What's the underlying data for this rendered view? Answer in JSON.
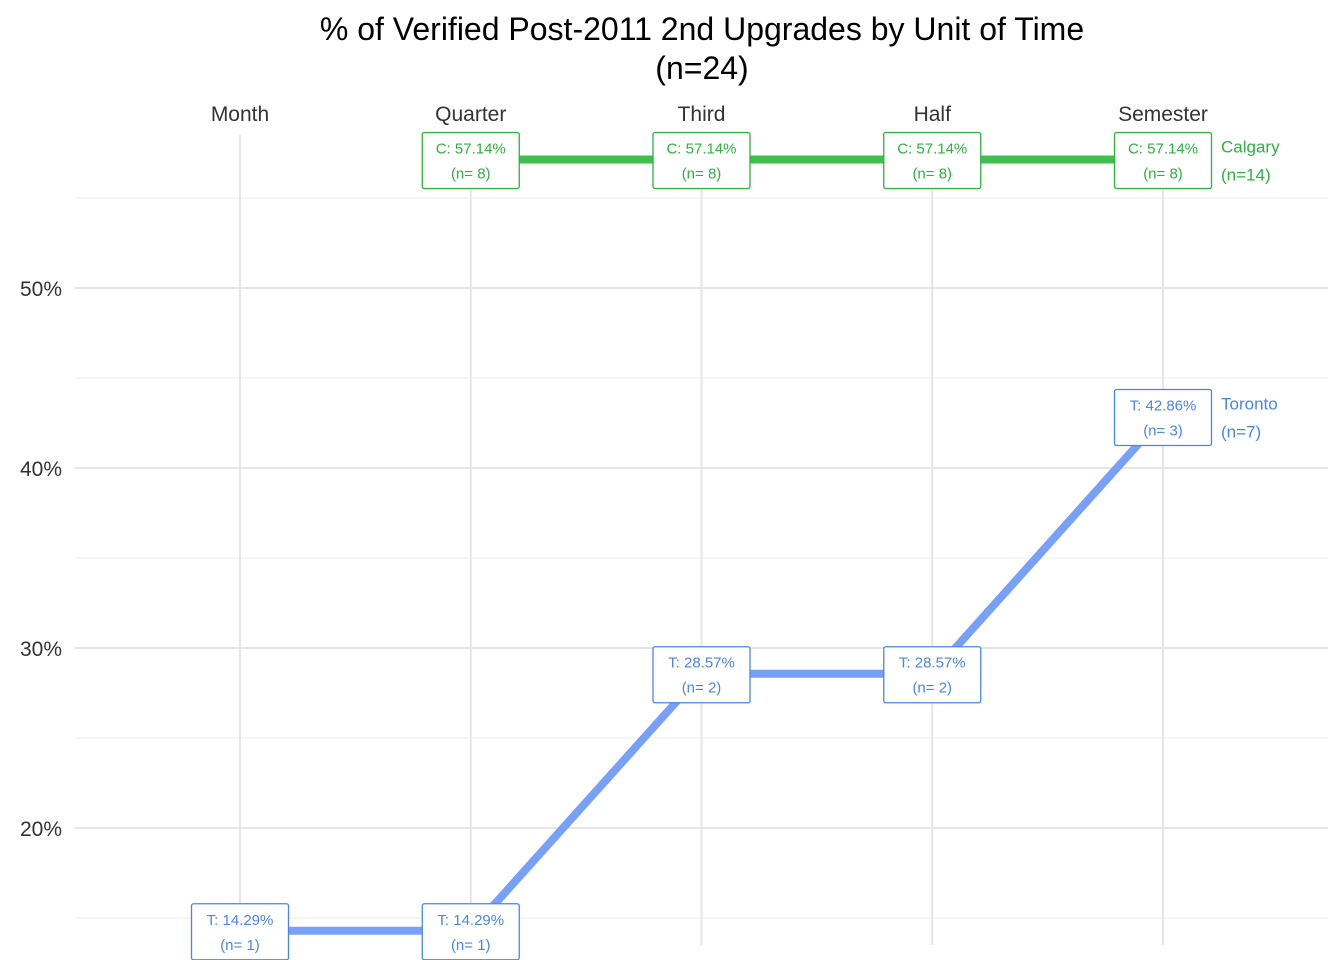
{
  "chart_data": {
    "type": "line",
    "title": "% of Verified Post-2011 2nd Upgrades by Unit of Time",
    "subtitle": "(n=24)",
    "categories": [
      "Month",
      "Quarter",
      "Third",
      "Half",
      "Semester"
    ],
    "x_axis_position": "top",
    "ylim": [
      13.5,
      58.5
    ],
    "y_ticks": [
      20,
      30,
      40,
      50
    ],
    "y_tick_labels": [
      "20%",
      "30%",
      "40%",
      "50%"
    ],
    "grid": true,
    "series": [
      {
        "name": "Calgary",
        "end_label": [
          "Calgary",
          "(n=14)"
        ],
        "color": "#40bf4f",
        "text_color": "#2eb13f",
        "values": [
          null,
          57.14,
          57.14,
          57.14,
          57.14
        ],
        "labels": [
          null,
          [
            "C: 57.14%",
            "(n= 8)"
          ],
          [
            "C: 57.14%",
            "(n= 8)"
          ],
          [
            "C: 57.14%",
            "(n= 8)"
          ],
          [
            "C: 57.14%",
            "(n= 8)"
          ]
        ]
      },
      {
        "name": "Toronto",
        "end_label": [
          "Toronto",
          "(n=7)"
        ],
        "color": "#78a0f8",
        "text_color": "#4a86e8",
        "values": [
          14.29,
          14.29,
          28.57,
          28.57,
          42.86
        ],
        "labels": [
          [
            "T: 14.29%",
            "(n= 1)"
          ],
          [
            "T: 14.29%",
            "(n= 1)"
          ],
          [
            "T: 28.57%",
            "(n= 2)"
          ],
          [
            "T: 28.57%",
            "(n= 2)"
          ],
          [
            "T: 42.86%",
            "(n= 3)"
          ]
        ]
      }
    ]
  }
}
